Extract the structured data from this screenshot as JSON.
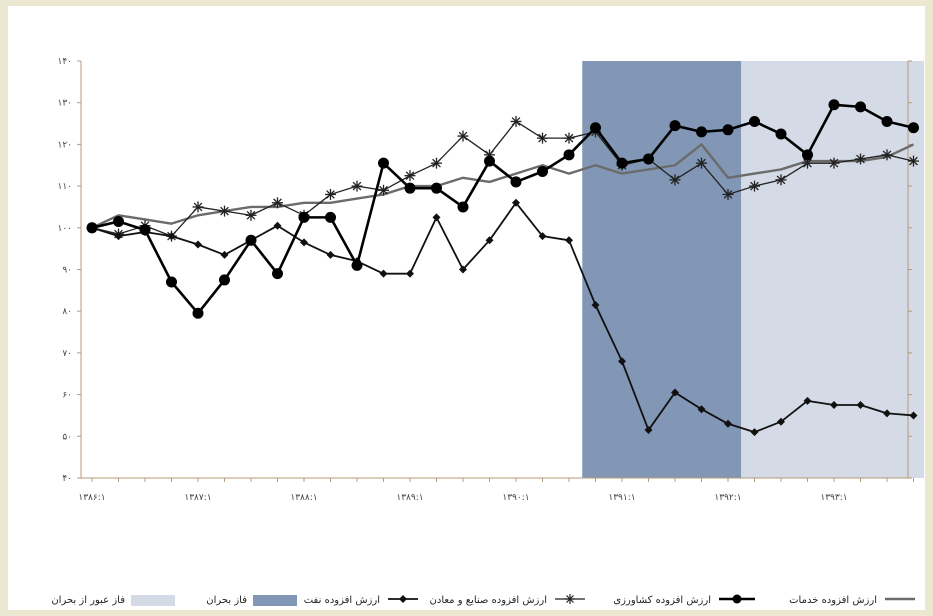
{
  "chart_data": {
    "type": "line",
    "title": "",
    "xlabel": "",
    "ylabel": "",
    "ylim": [
      40,
      140
    ],
    "yticks": [
      "۴۰",
      "۵۰",
      "۶۰",
      "۷۰",
      "۸۰",
      "۹۰",
      "۱۰۰",
      "۱۱۰",
      "۱۲۰",
      "۱۳۰",
      "۱۴۰"
    ],
    "xtick_labels": [
      "۱۳۸۶:۱",
      "۱۳۸۷:۱",
      "۱۳۸۸:۱",
      "۱۳۸۹:۱",
      "۱۳۹۰:۱",
      "۱۳۹۱:۱",
      "۱۳۹۲:۱",
      "۱۳۹۳:۱"
    ],
    "xtick_index": [
      0,
      4,
      8,
      12,
      16,
      20,
      24,
      28
    ],
    "n_points": 32,
    "shaded_regions": [
      {
        "name": "فاز بحران",
        "start": 18.5,
        "end": 24.5,
        "color": "#8197b5"
      },
      {
        "name": "فاز عبور از بحران",
        "start": 24.5,
        "end": 31.4,
        "color": "#d5dbe6"
      }
    ],
    "series": [
      {
        "name": "ارزش افزوده نفت",
        "marker": "diamond",
        "color": "#111111",
        "values": [
          100,
          98,
          99,
          98,
          96,
          93.5,
          97,
          100.5,
          96.5,
          93.5,
          92,
          89,
          89,
          102.5,
          90,
          97,
          106,
          98,
          97,
          81.5,
          68,
          51.5,
          60.5,
          56.5,
          53,
          51,
          53.5,
          58.5,
          57.5,
          57.5,
          55.5,
          55
        ]
      },
      {
        "name": "ارزش افزوده صنایع و معادن",
        "marker": "star",
        "color": "#222222",
        "values": [
          100,
          98.5,
          100.5,
          98,
          105,
          104,
          103,
          106,
          103,
          108,
          110,
          109,
          112.5,
          115.5,
          122,
          117.5,
          125.5,
          121.5,
          121.5,
          123,
          115,
          116.5,
          111.5,
          115.5,
          108,
          110,
          111.5,
          115.5,
          115.5,
          116.5,
          117.5,
          116
        ]
      },
      {
        "name": "ارزش افزوده کشاورزی",
        "marker": "circle",
        "color": "#000000",
        "values": [
          100,
          101.5,
          99.5,
          87,
          79.5,
          87.5,
          97,
          89,
          102.5,
          102.5,
          91,
          115.5,
          109.5,
          109.5,
          105,
          116,
          111,
          113.5,
          117.5,
          124,
          115.5,
          116.5,
          124.5,
          123,
          123.5,
          125.5,
          122.5,
          117.5,
          129.5,
          129,
          125.5,
          124
        ]
      },
      {
        "name": "ارزش افزوده خدمات",
        "marker": "none",
        "color": "#6b6b6b",
        "values": [
          100,
          103,
          102,
          101,
          103,
          104,
          105,
          105,
          106,
          106,
          107,
          108,
          110,
          110,
          112,
          111,
          113,
          115,
          113,
          115,
          113,
          114,
          115,
          120,
          112,
          113,
          114,
          116,
          116,
          116,
          117,
          120
        ]
      }
    ]
  },
  "legend": [
    {
      "key": "services",
      "label": "ارزش افزوده خدمات"
    },
    {
      "key": "agriculture",
      "label": "ارزش افزوده کشاورزی"
    },
    {
      "key": "industry",
      "label": "ارزش افزوده صنایع و معادن"
    },
    {
      "key": "oil",
      "label": "ارزش افزوده نفت"
    },
    {
      "key": "crisis",
      "label": "فاز بحران"
    },
    {
      "key": "recovery",
      "label": "فاز عبور از بحران"
    }
  ]
}
